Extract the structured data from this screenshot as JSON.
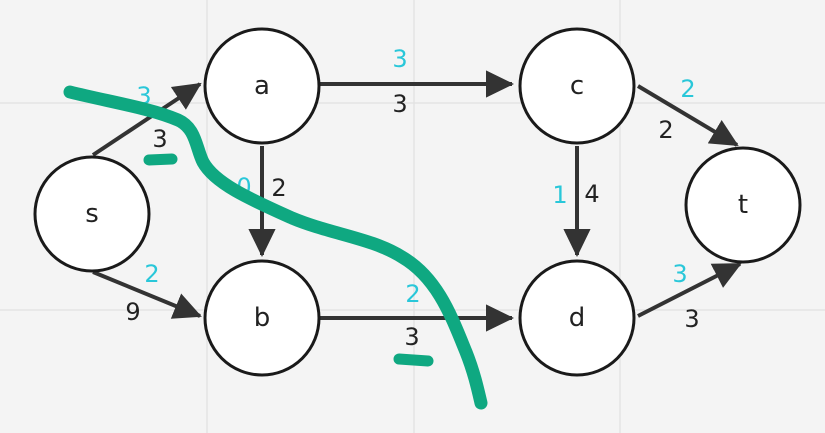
{
  "colors": {
    "background": "#f4f4f4",
    "node_stroke": "#1a1a1a",
    "edge": "#333333",
    "capacity_text": "#222222",
    "flow_text": "#29c7d9",
    "cut_marker": "#0fa881"
  },
  "nodes": {
    "s": "s",
    "a": "a",
    "b": "b",
    "c": "c",
    "d": "d",
    "t": "t"
  },
  "edges": {
    "s_a": {
      "flow": "3",
      "capacity": "3"
    },
    "s_b": {
      "flow": "2",
      "capacity": "9"
    },
    "a_c": {
      "flow": "3",
      "capacity": "3"
    },
    "a_b": {
      "flow": "0",
      "capacity": "2"
    },
    "b_d": {
      "flow": "2",
      "capacity": "3"
    },
    "c_d": {
      "flow": "1",
      "capacity": "4"
    },
    "c_t": {
      "flow": "2",
      "capacity": "2"
    },
    "d_t": {
      "flow": "3",
      "capacity": "3"
    }
  }
}
